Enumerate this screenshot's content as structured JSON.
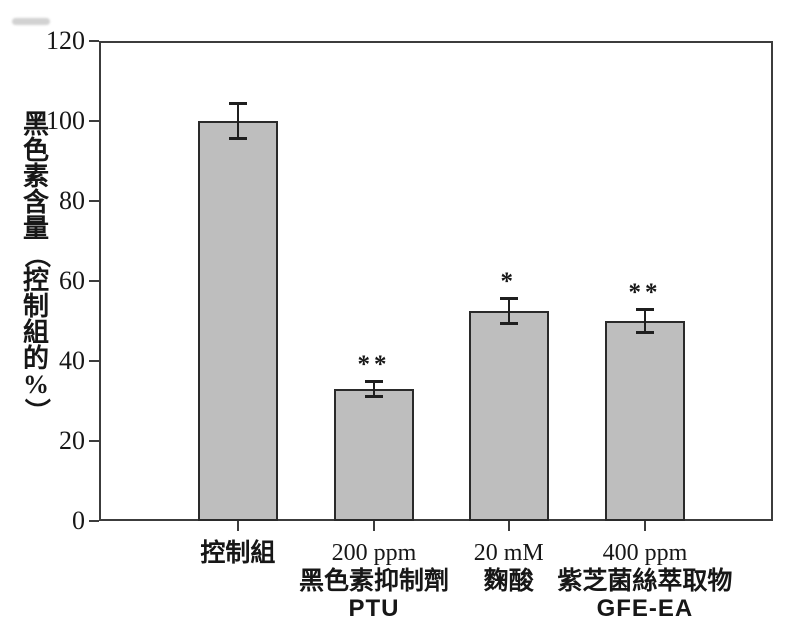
{
  "page": {
    "background": "#ffffff"
  },
  "colors": {
    "bar_fill": "#bebebe",
    "bar_border": "#2a2a2a",
    "axis": "#3c3c3c",
    "error_bar": "#1f1f1f",
    "text": "#171717",
    "artifact": "#d2d2d2"
  },
  "chart_data": {
    "type": "bar",
    "title": "",
    "xlabel": "",
    "ylabel": "黑色素含量（控制組的%）",
    "ylim": [
      0,
      120
    ],
    "yticks": [
      0,
      20,
      40,
      60,
      80,
      100,
      120
    ],
    "grid": false,
    "framed": true,
    "legend_position": "none",
    "categories": [
      "控制組",
      "200 ppm 黑色素抑制劑 PTU",
      "20 mM 麴酸",
      "400 ppm 紫芝菌絲萃取物 GFE-EA"
    ],
    "category_label_lines": [
      [
        "控制組"
      ],
      [
        "200 ppm",
        "黑色素抑制劑",
        "PTU"
      ],
      [
        "20 mM",
        "麴酸"
      ],
      [
        "400 ppm",
        "紫芝菌絲萃取物",
        "GFE-EA"
      ]
    ],
    "values": [
      100,
      33,
      52.5,
      50
    ],
    "errors": [
      4.5,
      2.1,
      3.2,
      3.0
    ],
    "significance": [
      "",
      "**",
      "*",
      "**"
    ]
  }
}
